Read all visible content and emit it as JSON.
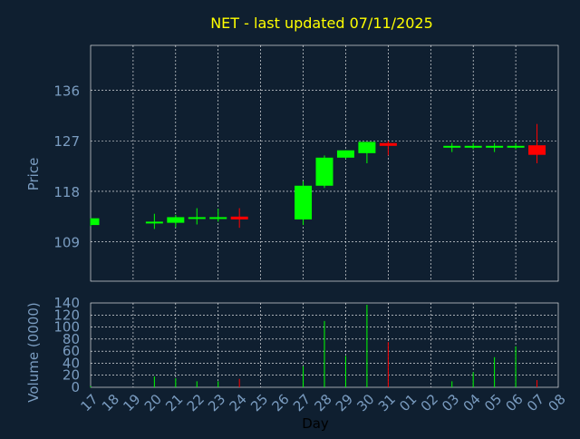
{
  "title": "NET - last updated 07/11/2025",
  "colors": {
    "background": "#0f1f30",
    "title": "#ffff00",
    "axis_text": "#7a9cc0",
    "grid": "#ffffff",
    "up": "#00ff00",
    "down": "#ff0000"
  },
  "chart_data": [
    {
      "type": "candlestick",
      "ylabel": "Price",
      "ylim": [
        102,
        144
      ],
      "yticks": [
        109,
        118,
        127,
        136
      ],
      "grid": true,
      "days": [
        "17",
        "18",
        "19",
        "20",
        "21",
        "22",
        "23",
        "24",
        "25",
        "26",
        "27",
        "28",
        "29",
        "30",
        "31",
        "01",
        "02",
        "03",
        "04",
        "05",
        "06",
        "07",
        "08"
      ],
      "candles": [
        {
          "day": "17",
          "open": 112.0,
          "high": 113.2,
          "low": 111.8,
          "close": 113.2
        },
        {
          "day": "20",
          "open": 112.4,
          "high": 114.0,
          "low": 111.3,
          "close": 112.6
        },
        {
          "day": "21",
          "open": 112.4,
          "high": 113.8,
          "low": 111.6,
          "close": 113.4
        },
        {
          "day": "22",
          "open": 113.1,
          "high": 115.0,
          "low": 112.1,
          "close": 113.4
        },
        {
          "day": "23",
          "open": 113.2,
          "high": 114.9,
          "low": 112.6,
          "close": 113.4
        },
        {
          "day": "24",
          "open": 113.5,
          "high": 115.0,
          "low": 111.5,
          "close": 113.0
        },
        {
          "day": "27",
          "open": 113.0,
          "high": 119.8,
          "low": 112.0,
          "close": 119.0
        },
        {
          "day": "28",
          "open": 119.0,
          "high": 124.4,
          "low": 118.6,
          "close": 124.0
        },
        {
          "day": "29",
          "open": 124.0,
          "high": 125.3,
          "low": 123.8,
          "close": 125.3
        },
        {
          "day": "30",
          "open": 124.8,
          "high": 126.8,
          "low": 123.0,
          "close": 126.8
        },
        {
          "day": "31",
          "open": 126.6,
          "high": 127.0,
          "low": 124.4,
          "close": 126.1
        },
        {
          "day": "03",
          "open": 126.0,
          "high": 126.6,
          "low": 125.0,
          "close": 126.1
        },
        {
          "day": "04",
          "open": 125.9,
          "high": 126.6,
          "low": 125.5,
          "close": 126.1
        },
        {
          "day": "05",
          "open": 126.0,
          "high": 126.6,
          "low": 125.0,
          "close": 126.1
        },
        {
          "day": "06",
          "open": 125.9,
          "high": 126.6,
          "low": 125.5,
          "close": 126.1
        },
        {
          "day": "07",
          "open": 126.2,
          "high": 130.0,
          "low": 123.0,
          "close": 124.5
        }
      ]
    },
    {
      "type": "bar",
      "ylabel": "Volume (0000)",
      "xlabel": "Day",
      "ylim": [
        0,
        140
      ],
      "yticks": [
        0,
        20,
        40,
        60,
        80,
        100,
        120,
        140
      ],
      "grid": true,
      "volumes": [
        {
          "day": "17",
          "value": 2,
          "dir": "up"
        },
        {
          "day": "20",
          "value": 18,
          "dir": "up"
        },
        {
          "day": "21",
          "value": 15,
          "dir": "up"
        },
        {
          "day": "22",
          "value": 10,
          "dir": "up"
        },
        {
          "day": "23",
          "value": 10,
          "dir": "up"
        },
        {
          "day": "24",
          "value": 14,
          "dir": "down"
        },
        {
          "day": "27",
          "value": 35,
          "dir": "up"
        },
        {
          "day": "28",
          "value": 110,
          "dir": "up"
        },
        {
          "day": "29",
          "value": 52,
          "dir": "up"
        },
        {
          "day": "30",
          "value": 137,
          "dir": "up"
        },
        {
          "day": "31",
          "value": 75,
          "dir": "down"
        },
        {
          "day": "03",
          "value": 10,
          "dir": "up"
        },
        {
          "day": "04",
          "value": 25,
          "dir": "up"
        },
        {
          "day": "05",
          "value": 50,
          "dir": "up"
        },
        {
          "day": "06",
          "value": 68,
          "dir": "up"
        },
        {
          "day": "07",
          "value": 12,
          "dir": "down"
        }
      ]
    }
  ]
}
